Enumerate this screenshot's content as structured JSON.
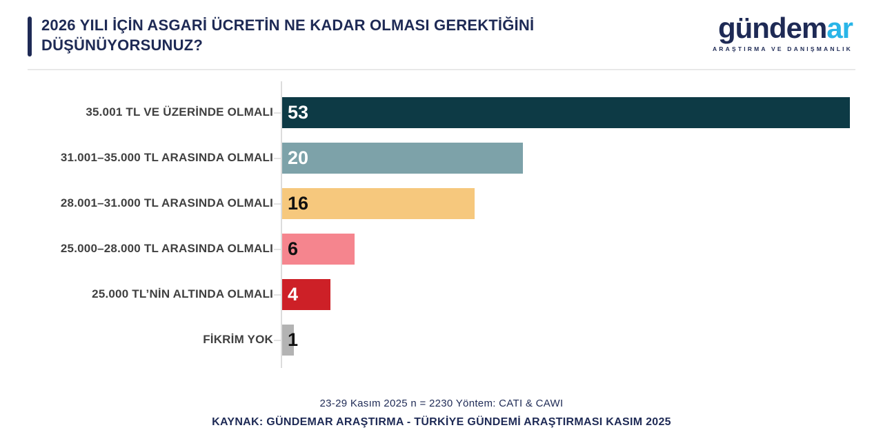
{
  "header": {
    "logo": {
      "wordmark_primary": "gündem",
      "wordmark_accent": "ar",
      "tagline": "ARAŞTIRMA VE DANIŞMANLIK",
      "primary_color": "#1e2a55",
      "accent_color": "#29b5e8"
    }
  },
  "chart_data": {
    "type": "bar",
    "orientation": "horizontal",
    "title": "2026 YILI İÇİN ASGARİ ÜCRETİN NE KADAR OLMASI GEREKTİĞİNİ DÜŞÜNÜYORSUNUZ?",
    "categories": [
      "35.001 TL VE ÜZERİNDE OLMALI",
      "31.001–35.000 TL ARASINDA OLMALI",
      "28.001–31.000 TL ARASINDA OLMALI",
      "25.000–28.000 TL ARASINDA OLMALI",
      "25.000 TL’NİN ALTINDA OLMALI",
      "FİKRİM YOK"
    ],
    "values": [
      53,
      20,
      16,
      6,
      4,
      1
    ],
    "bar_colors": [
      "#0d3a45",
      "#7da2a9",
      "#f6c87d",
      "#f5858e",
      "#cd2027",
      "#b3b3b3"
    ],
    "value_label_colors": [
      "#ffffff",
      "#ffffff",
      "#111111",
      "#111111",
      "#ffffff",
      "#111111"
    ],
    "xlabel": "",
    "ylabel": "",
    "xlim": [
      0,
      53
    ],
    "grid": false,
    "legend": false,
    "data_labels": "inside-start",
    "units": "percent"
  },
  "footer": {
    "methodology": "23-29 Kasım 2025 n = 2230 Yöntem: CATI & CAWI",
    "source": "KAYNAK: GÜNDEMAR ARAŞTIRMA - TÜRKİYE GÜNDEMİ ARAŞTIRMASI KASIM 2025"
  },
  "colors": {
    "title_navy": "#1e2a55",
    "label_gray": "#404040",
    "axis_line": "#dcdcdc",
    "background": "#ffffff"
  }
}
